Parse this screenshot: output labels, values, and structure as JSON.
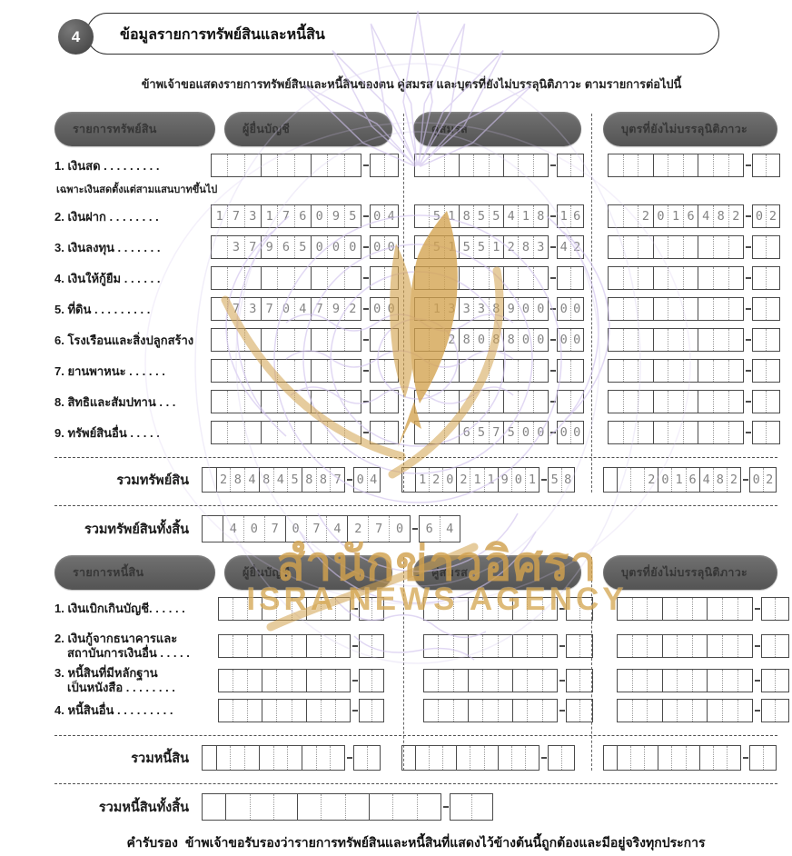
{
  "header": {
    "section_number": "4",
    "title": "ข้อมูลรายการทรัพย์สินและหนี้สิน"
  },
  "intro": "ข้าพเจ้าขอแสดงรายการทรัพย์สินและหนี้สินของตน  คู่สมรส  และบุตรที่ยังไม่บรรลุนิติภาวะ  ตามรายการต่อไปนี้",
  "watermark": {
    "thai_text": "สำนักข่าวอิศรา",
    "english_text": "ISRA NEWS AGENCY",
    "gold_color": "#d1a24f",
    "emblem_color": "#cfc0ec"
  },
  "assets": {
    "columns": [
      "รายการทรัพย์สิน",
      "ผู้ยื่นบัญชี",
      "คู่สมรส",
      "บุตรที่ยังไม่บรรลุนิติภาวะ"
    ],
    "rows": [
      {
        "label": "1. เงินสด  . . . . . . . . .",
        "note": "เฉพาะเงินสดตั้งแต่สามแสนบาทขึ้นไป",
        "declarant": "",
        "spouse": "",
        "children": ""
      },
      {
        "label": "2. เงินฝาก  . . . . . . . .",
        "declarant": "173176095.04",
        "spouse": "51855418.16",
        "children": "2016482.02"
      },
      {
        "label": "3. เงินลงทุน  . . . . . . .",
        "declarant": "37965000.00",
        "spouse": "51551283.42",
        "children": ""
      },
      {
        "label": "4. เงินให้กู้ยืม  . . . . . .",
        "declarant": "",
        "spouse": "",
        "children": ""
      },
      {
        "label": "5. ที่ดิน  . . . . . . . . .",
        "declarant": "73704792.00",
        "spouse": "13338900.00",
        "children": ""
      },
      {
        "label": "6. โรงเรือนและสิ่งปลูกสร้าง",
        "declarant": "",
        "spouse": "2808800.00",
        "children": ""
      },
      {
        "label": "7. ยานพาหนะ  . . . . . .",
        "declarant": "",
        "spouse": "",
        "children": ""
      },
      {
        "label": "8. สิทธิและสัมปทาน  . . .",
        "declarant": "",
        "spouse": "",
        "children": ""
      },
      {
        "label": "9. ทรัพย์สินอื่น  . . . . .",
        "declarant": "",
        "spouse": "657500.00",
        "children": ""
      }
    ],
    "total_label": "รวมทรัพย์สิน",
    "total": {
      "declarant": "284845887.04",
      "spouse": "120211901.58",
      "children": "2016482.02"
    },
    "grand_total_label": "รวมทรัพย์สินทั้งสิ้น",
    "grand_total": "407074270.64"
  },
  "liabilities": {
    "columns": [
      "รายการหนี้สิน",
      "ผู้ยื่นบัญชี",
      "คู่สมรส",
      "บุตรที่ยังไม่บรรลุนิติภาวะ"
    ],
    "rows": [
      {
        "label": "1. เงินเบิกเกินบัญชี. . . . . .",
        "label2": "",
        "declarant": "",
        "spouse": "",
        "children": ""
      },
      {
        "label": "2. เงินกู้จากธนาคารและ",
        "label2": "สถาบันการเงินอื่น  . . . . .",
        "declarant": "",
        "spouse": "",
        "children": ""
      },
      {
        "label": "3. หนี้สินที่มีหลักฐาน",
        "label2": "เป็นหนังสือ  . . . . . . . .",
        "declarant": "",
        "spouse": "",
        "children": ""
      },
      {
        "label": "4. หนี้สินอื่น  . . . . . . . . .",
        "label2": "",
        "declarant": "",
        "spouse": "",
        "children": ""
      }
    ],
    "total_label": "รวมหนี้สิน",
    "total": {
      "declarant": "",
      "spouse": "",
      "children": ""
    },
    "grand_total_label": "รวมหนี้สินทั้งสิ้น",
    "grand_total": ""
  },
  "footer": {
    "lead": "คำรับรอง",
    "text": "ข้าพเจ้าขอรับรองว่ารายการทรัพย์สินและหนี้สินที่แสดงไว้ข้างต้นนี้ถูกต้องและมีอยู่จริงทุกประการ"
  }
}
